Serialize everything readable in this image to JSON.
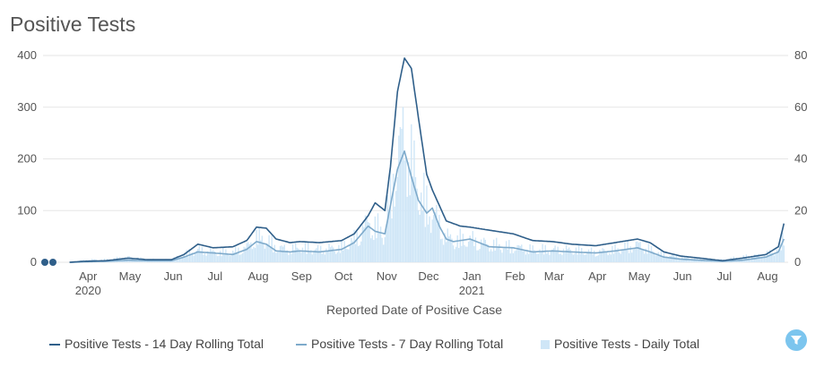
{
  "title": "Positive Tests",
  "chart_data": {
    "type": "line",
    "title": "Positive Tests",
    "xlabel": "Reported Date of Positive Case",
    "ylabel_left": "",
    "ylabel_right": "",
    "ylim_left": [
      0,
      400
    ],
    "ylim_right": [
      0,
      80
    ],
    "left_ticks": [
      "400",
      "300",
      "200",
      "100",
      "0"
    ],
    "right_ticks": [
      "80",
      "60",
      "40",
      "20",
      "0"
    ],
    "x_tick_labels": [
      {
        "label": "Apr",
        "sub": "2020"
      },
      {
        "label": "May",
        "sub": ""
      },
      {
        "label": "Jun",
        "sub": ""
      },
      {
        "label": "Jul",
        "sub": ""
      },
      {
        "label": "Aug",
        "sub": ""
      },
      {
        "label": "Sep",
        "sub": ""
      },
      {
        "label": "Oct",
        "sub": ""
      },
      {
        "label": "Nov",
        "sub": ""
      },
      {
        "label": "Dec",
        "sub": ""
      },
      {
        "label": "Jan",
        "sub": "2021"
      },
      {
        "label": "Feb",
        "sub": ""
      },
      {
        "label": "Mar",
        "sub": ""
      },
      {
        "label": "Apr",
        "sub": ""
      },
      {
        "label": "May",
        "sub": ""
      },
      {
        "label": "Jun",
        "sub": ""
      },
      {
        "label": "Jul",
        "sub": ""
      },
      {
        "label": "Aug",
        "sub": ""
      }
    ],
    "grid": true,
    "legend_position": "bottom",
    "x_dates": [
      "2020-03-05",
      "2020-03-10",
      "2020-03-20",
      "2020-04-01",
      "2020-04-15",
      "2020-05-01",
      "2020-05-15",
      "2020-06-01",
      "2020-06-10",
      "2020-06-20",
      "2020-07-01",
      "2020-07-15",
      "2020-07-25",
      "2020-08-01",
      "2020-08-08",
      "2020-08-15",
      "2020-08-25",
      "2020-09-01",
      "2020-09-15",
      "2020-10-01",
      "2020-10-10",
      "2020-10-20",
      "2020-10-25",
      "2020-11-01",
      "2020-11-05",
      "2020-11-10",
      "2020-11-15",
      "2020-11-20",
      "2020-11-25",
      "2020-12-01",
      "2020-12-05",
      "2020-12-10",
      "2020-12-15",
      "2020-12-20",
      "2020-12-25",
      "2021-01-01",
      "2021-01-15",
      "2021-02-01",
      "2021-02-15",
      "2021-03-01",
      "2021-03-15",
      "2021-04-01",
      "2021-04-15",
      "2021-05-01",
      "2021-05-10",
      "2021-05-20",
      "2021-06-01",
      "2021-06-15",
      "2021-07-01",
      "2021-07-15",
      "2021-08-01",
      "2021-08-10",
      "2021-08-14"
    ],
    "series": [
      {
        "name": "Positive Tests - 14 Day Rolling Total",
        "color": "#2f5f8a",
        "axis": "left",
        "values": [
          0,
          0,
          0,
          2,
          3,
          8,
          5,
          5,
          15,
          35,
          28,
          30,
          42,
          68,
          66,
          45,
          38,
          40,
          38,
          42,
          55,
          90,
          115,
          100,
          185,
          330,
          395,
          375,
          280,
          170,
          140,
          110,
          80,
          75,
          70,
          68,
          62,
          55,
          42,
          40,
          35,
          32,
          38,
          45,
          38,
          20,
          12,
          8,
          3,
          8,
          15,
          30,
          75
        ]
      },
      {
        "name": "Positive Tests - 7 Day Rolling Total",
        "color": "#7eaacb",
        "axis": "left",
        "values": [
          0,
          0,
          0,
          1,
          2,
          4,
          3,
          3,
          10,
          20,
          18,
          15,
          25,
          40,
          35,
          22,
          20,
          22,
          20,
          25,
          38,
          70,
          60,
          55,
          110,
          180,
          215,
          165,
          120,
          95,
          105,
          70,
          45,
          40,
          42,
          45,
          30,
          28,
          20,
          22,
          20,
          18,
          22,
          28,
          20,
          10,
          6,
          4,
          2,
          4,
          10,
          20,
          45
        ]
      },
      {
        "name": "Positive Tests - Daily Total",
        "color": "#cfe6f7",
        "axis": "right",
        "type": "bar",
        "values": [
          0,
          0,
          0,
          1,
          1,
          2,
          1,
          1,
          3,
          5,
          4,
          4,
          6,
          10,
          9,
          6,
          5,
          6,
          5,
          6,
          9,
          16,
          14,
          12,
          28,
          42,
          50,
          40,
          30,
          22,
          20,
          15,
          10,
          9,
          9,
          9,
          7,
          6,
          5,
          5,
          5,
          4,
          5,
          7,
          5,
          3,
          2,
          1,
          1,
          2,
          3,
          5,
          10
        ]
      }
    ]
  },
  "legend": {
    "item1": "Positive Tests - 14 Day Rolling Total",
    "item2": "Positive Tests - 7 Day Rolling Total",
    "item3": "Positive Tests - Daily Total"
  },
  "colors": {
    "line14": "#2f5f8a",
    "line7": "#7eaacb",
    "bars": "#cfe6f7",
    "grid": "#e6e6e6",
    "filter": "#7cc5ee"
  },
  "icons": {
    "filter": "filter-icon"
  }
}
